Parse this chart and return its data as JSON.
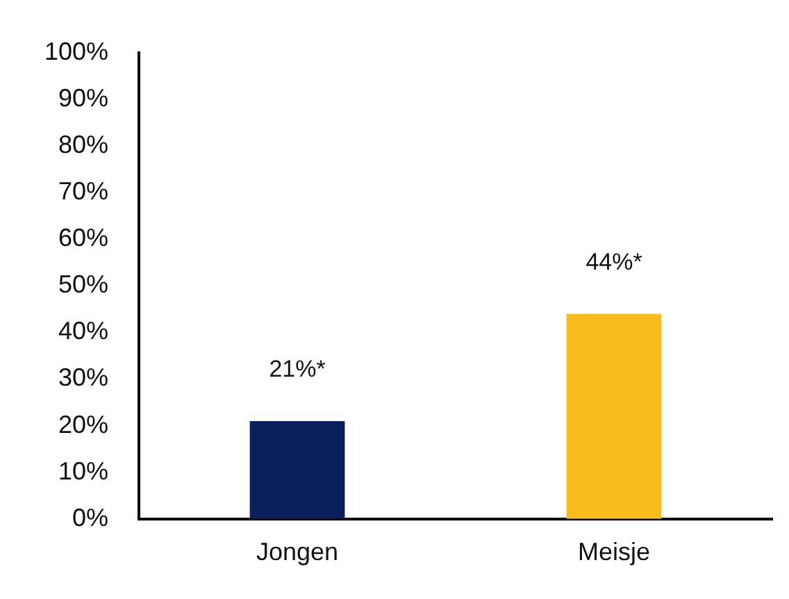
{
  "chart_data": {
    "type": "bar",
    "categories": [
      "Jongen",
      "Meisje"
    ],
    "values": [
      21,
      44
    ],
    "colors": [
      "#0a1f5c",
      "#f8bc1c"
    ],
    "value_labels": [
      "21%*",
      "44%*"
    ],
    "ylim": [
      0,
      100
    ],
    "yticks": [
      {
        "value": 0,
        "label": "0%"
      },
      {
        "value": 10,
        "label": "10%"
      },
      {
        "value": 20,
        "label": "20%"
      },
      {
        "value": 30,
        "label": "30%"
      },
      {
        "value": 40,
        "label": "40%"
      },
      {
        "value": 50,
        "label": "50%"
      },
      {
        "value": 60,
        "label": "60%"
      },
      {
        "value": 70,
        "label": "70%"
      },
      {
        "value": 80,
        "label": "80%"
      },
      {
        "value": 90,
        "label": "90%"
      },
      {
        "value": 100,
        "label": "100%"
      }
    ],
    "grid": false,
    "legend": false
  }
}
